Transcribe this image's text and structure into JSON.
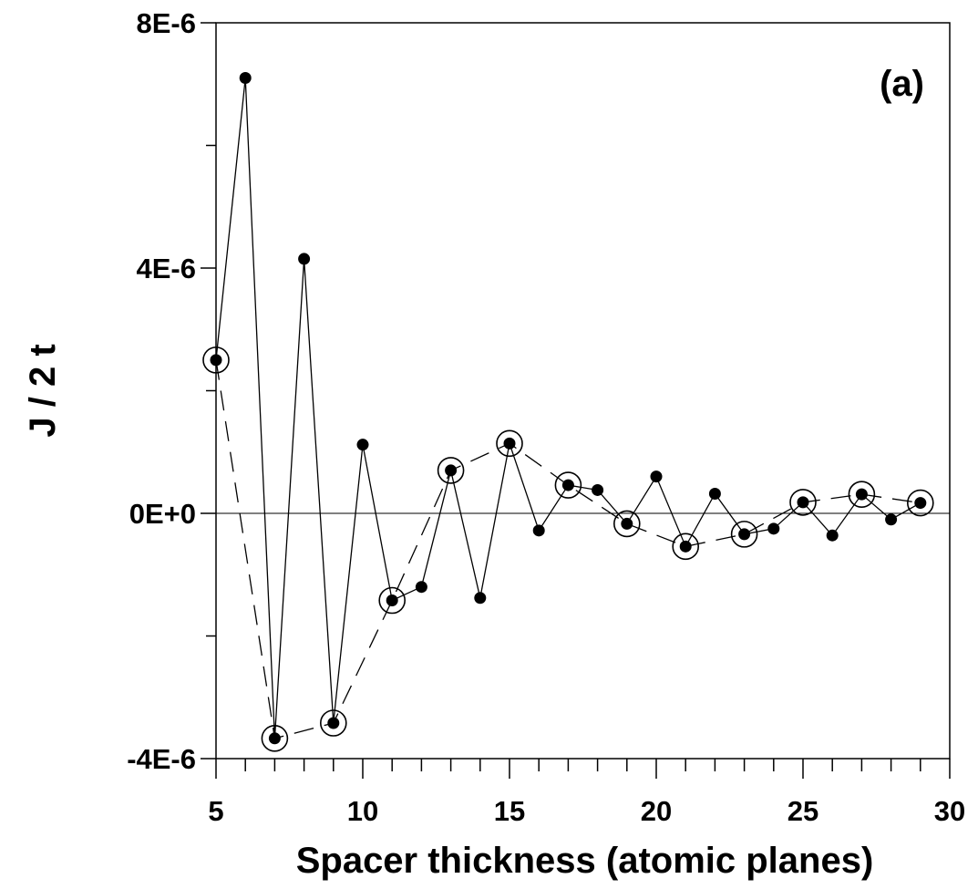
{
  "chart_data": {
    "type": "line",
    "panel_label": "(a)",
    "xlabel": "Spacer thickness (atomic planes)",
    "ylabel": "J / 2 t",
    "xlim": [
      5,
      30
    ],
    "ylim": [
      -4e-06,
      8e-06
    ],
    "x_ticks": [
      5,
      10,
      15,
      20,
      25,
      30
    ],
    "x_tick_labels": [
      "5",
      "10",
      "15",
      "20",
      "25",
      "30"
    ],
    "x_minor_step": 1,
    "y_ticks": [
      -4e-06,
      0,
      4e-06,
      8e-06
    ],
    "y_tick_labels": [
      "-4E-6",
      "0E+0",
      "4E-6",
      "8E-6"
    ],
    "y_minor_step": 2e-06,
    "zero_line": true,
    "grid": false,
    "series": [
      {
        "style": "solid line, filled circle markers",
        "x": [
          5,
          6,
          7,
          8,
          9,
          10,
          11,
          12,
          13,
          14,
          15,
          16,
          17,
          18,
          19,
          20,
          21,
          22,
          23,
          24,
          25,
          26,
          27,
          28,
          29
        ],
        "y": [
          2.5e-06,
          7.1e-06,
          -3.67e-06,
          4.15e-06,
          -3.42e-06,
          1.12e-06,
          -1.42e-06,
          -1.2e-06,
          7e-07,
          -1.38e-06,
          1.14e-06,
          -2.8e-07,
          4.6e-07,
          3.8e-07,
          -1.7e-07,
          6e-07,
          -5.4e-07,
          3.2e-07,
          -3.4e-07,
          -2.5e-07,
          1.8e-07,
          -3.6e-07,
          3.1e-07,
          -1e-07,
          1.7e-07
        ]
      },
      {
        "style": "dashed line, open circle markers",
        "x": [
          5,
          7,
          9,
          11,
          13,
          15,
          17,
          19,
          21,
          23,
          25,
          27,
          29
        ],
        "y": [
          2.5e-06,
          -3.67e-06,
          -3.42e-06,
          -1.42e-06,
          7e-07,
          1.14e-06,
          4.6e-07,
          -1.7e-07,
          -5.4e-07,
          -3.4e-07,
          1.8e-07,
          3.1e-07,
          1.7e-07
        ]
      }
    ]
  }
}
